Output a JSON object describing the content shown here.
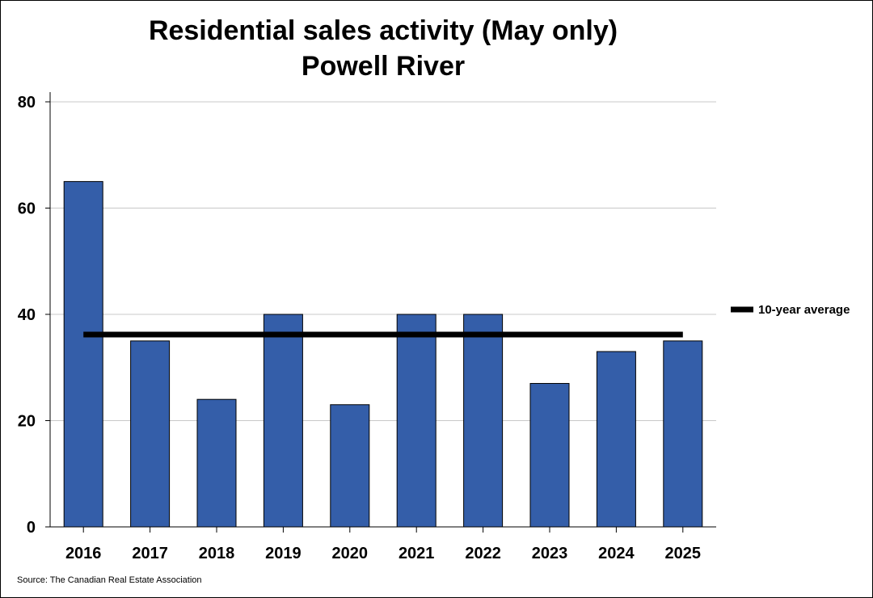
{
  "chart_data": {
    "type": "bar",
    "title": "Residential sales activity (May only)",
    "subtitle": "Powell River",
    "categories": [
      "2016",
      "2017",
      "2018",
      "2019",
      "2020",
      "2021",
      "2022",
      "2023",
      "2024",
      "2025"
    ],
    "values": [
      65,
      35,
      24,
      40,
      23,
      40,
      40,
      27,
      33,
      35
    ],
    "average": {
      "name": "10-year average",
      "value": 36.2
    },
    "ylim": [
      0,
      80
    ],
    "yticks": [
      0,
      20,
      40,
      60,
      80
    ],
    "xlabel": "",
    "ylabel": "",
    "grid": true,
    "legend_position": "right",
    "colors": {
      "bar": "#345EA9",
      "bar_edge": "#000000",
      "average_line": "#000000",
      "grid": "#C8C8C8"
    }
  },
  "source": "Source: The Canadian Real Estate Association"
}
